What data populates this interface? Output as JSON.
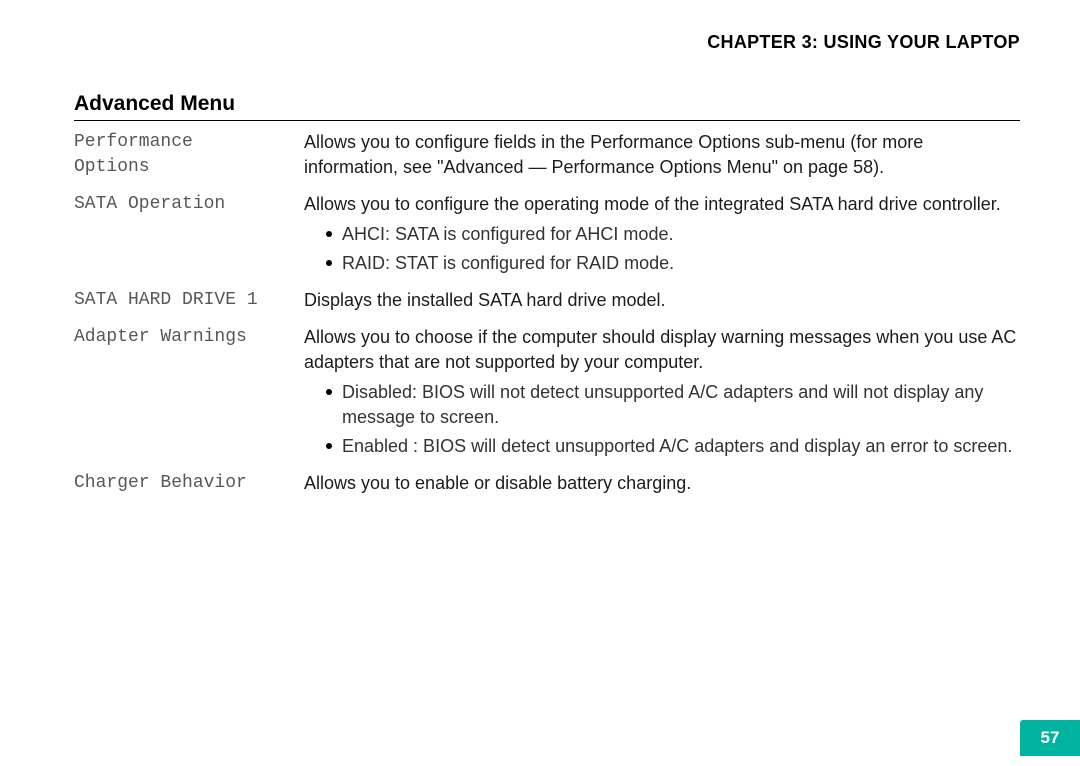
{
  "header": {
    "chapter": "CHAPTER 3: USING YOUR LAPTOP",
    "section": "Advanced Menu"
  },
  "items": [
    {
      "label": "Performance\nOptions",
      "description": "Allows you to configure fields in the Performance Options sub-menu (for more information, see \"Advanced — Performance Options Menu\" on page 58).",
      "bullets": []
    },
    {
      "label": "SATA Operation",
      "description": "Allows you to configure the operating mode of the integrated SATA hard drive controller.",
      "bullets": [
        "AHCI: SATA is configured for AHCI mode.",
        "RAID: STAT is configured for RAID mode."
      ]
    },
    {
      "label": "SATA HARD DRIVE 1",
      "description": "Displays the installed SATA hard drive model.",
      "bullets": []
    },
    {
      "label": "Adapter Warnings",
      "description": "Allows you to choose if the computer should display warning messages when you use AC adapters that are not supported by your computer.",
      "bullets": [
        "Disabled: BIOS will not detect unsupported A/C adapters and will not display any message to screen.",
        "Enabled : BIOS will detect unsupported A/C adapters and display an error to screen."
      ]
    },
    {
      "label": "Charger Behavior",
      "description": "Allows you to enable or disable battery charging.",
      "bullets": []
    }
  ],
  "page_number": "57",
  "style": {
    "badge_bg": "#00b3a0",
    "badge_fg": "#ffffff",
    "label_color": "#575757",
    "text_color": "#1c1c1c",
    "heading_color": "#000000",
    "rule_color": "#000000",
    "label_font": "Courier New",
    "body_font": "Arial",
    "section_fontsize": 21,
    "header_fontsize": 18,
    "body_fontsize": 18
  }
}
